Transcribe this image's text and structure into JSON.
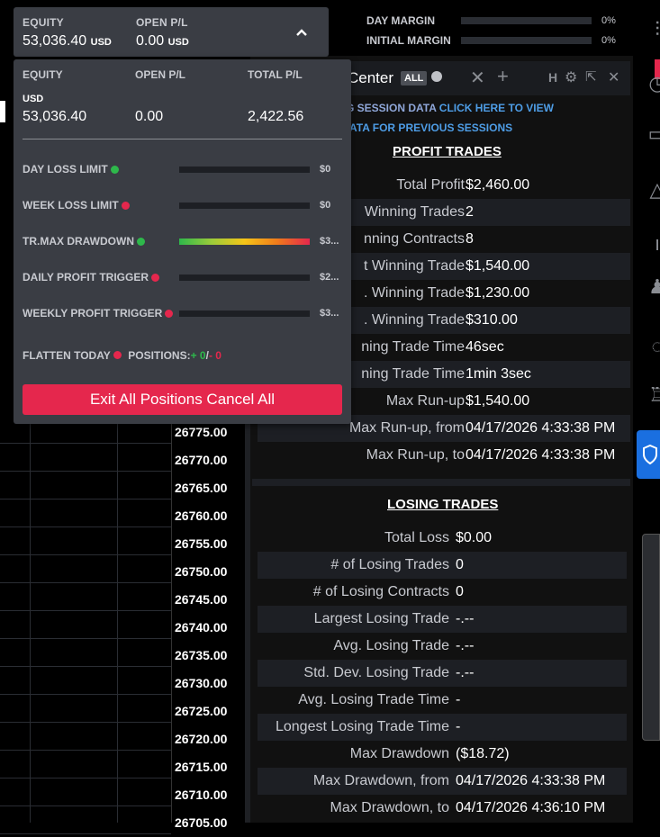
{
  "equity_bar": {
    "equity_label": "EQUITY",
    "equity_value": "53,036.40",
    "equity_currency": "USD",
    "openpl_label": "OPEN P/L",
    "openpl_value": "0.00",
    "openpl_currency": "USD"
  },
  "margins": [
    {
      "label": "DAY MARGIN",
      "pct": "0%"
    },
    {
      "label": "INITIAL MARGIN",
      "pct": "0%"
    }
  ],
  "tab": {
    "title": "Center",
    "all_badge": "ALL"
  },
  "session_note": {
    "line1_prefix": "G SESSION DATA",
    "line1_link": "CLICK HERE TO VIEW",
    "line2": "ATA FOR PREVIOUS SESSIONS"
  },
  "profit": {
    "title": "PROFIT TRADES",
    "rows": [
      {
        "k": "Total Profit",
        "v": "$2,460.00"
      },
      {
        "k": "Winning Trades",
        "v": "2"
      },
      {
        "k": "nning Contracts",
        "v": "8"
      },
      {
        "k": "t Winning Trade",
        "v": "$1,540.00"
      },
      {
        "k": ". Winning Trade",
        "v": "$1,230.00"
      },
      {
        "k": ". Winning Trade",
        "v": "$310.00"
      },
      {
        "k": "ning Trade Time",
        "v": "46sec"
      },
      {
        "k": "ning Trade Time",
        "v": "1min 3sec"
      },
      {
        "k": "Max Run-up",
        "v": "$1,540.00"
      },
      {
        "k": "Max Run-up, from",
        "v": "04/17/2026 4:33:38 PM"
      },
      {
        "k": "Max Run-up, to",
        "v": "04/17/2026 4:33:38 PM"
      }
    ]
  },
  "losing": {
    "title": "LOSING TRADES",
    "rows": [
      {
        "k": "Total Loss",
        "v": "$0.00"
      },
      {
        "k": "# of Losing Trades",
        "v": "0"
      },
      {
        "k": "# of Losing Contracts",
        "v": "0"
      },
      {
        "k": "Largest Losing Trade",
        "v": "-.--"
      },
      {
        "k": "Avg. Losing Trade",
        "v": "-.--"
      },
      {
        "k": "Std. Dev. Losing Trade",
        "v": "-.--"
      },
      {
        "k": "Avg. Losing Trade Time",
        "v": "-"
      },
      {
        "k": "Longest Losing Trade Time",
        "v": "-"
      },
      {
        "k": "Max Drawdown",
        "v": "($18.72)"
      },
      {
        "k": "Max Drawdown, from",
        "v": "04/17/2026 4:33:38 PM"
      },
      {
        "k": "Max Drawdown, to",
        "v": "04/17/2026 4:36:10 PM"
      }
    ]
  },
  "prices": [
    "26775.00",
    "26770.00",
    "26765.00",
    "26760.00",
    "26755.00",
    "26750.00",
    "26745.00",
    "26740.00",
    "26735.00",
    "26730.00",
    "26725.00",
    "26720.00",
    "26715.00",
    "26710.00",
    "26705.00"
  ],
  "dropdown": {
    "equity_label": "EQUITY",
    "openpl_label": "OPEN P/L",
    "totalpl_label": "TOTAL P/L",
    "currency": "USD",
    "equity_value": "53,036.40",
    "openpl_value": "0.00",
    "totalpl_value": "2,422.56",
    "limits": [
      {
        "label": "DAY LOSS LIMIT",
        "dot": "#2eb84b",
        "value": "$0",
        "fill": 0
      },
      {
        "label": "WEEK LOSS LIMIT",
        "dot": "#e5274d",
        "value": "$0",
        "fill": 0
      },
      {
        "label": "TR.MAX DRAWDOWN",
        "dot": "#2eb84b",
        "value": "$3...",
        "fill": 1
      },
      {
        "label": "DAILY PROFIT TRIGGER",
        "dot": "#e5274d",
        "value": "$2...",
        "fill": 0
      },
      {
        "label": "WEEKLY PROFIT TRIGGER",
        "dot": "#e5274d",
        "value": "$3...",
        "fill": 0
      }
    ],
    "flatten_label": "FLATTEN TODAY",
    "positions_label": "POSITIONS:",
    "positions_plus": "+ 0",
    "positions_slash": "/",
    "positions_minus": "- 0",
    "exit_button": "Exit All Positions Cancel All"
  },
  "icons": [
    "sliders-icon",
    "clock-icon",
    "chat-icon",
    "alert-triangle-icon",
    "info-icon",
    "users-icon",
    "help-icon",
    "trophy-icon",
    "shield-icon"
  ]
}
